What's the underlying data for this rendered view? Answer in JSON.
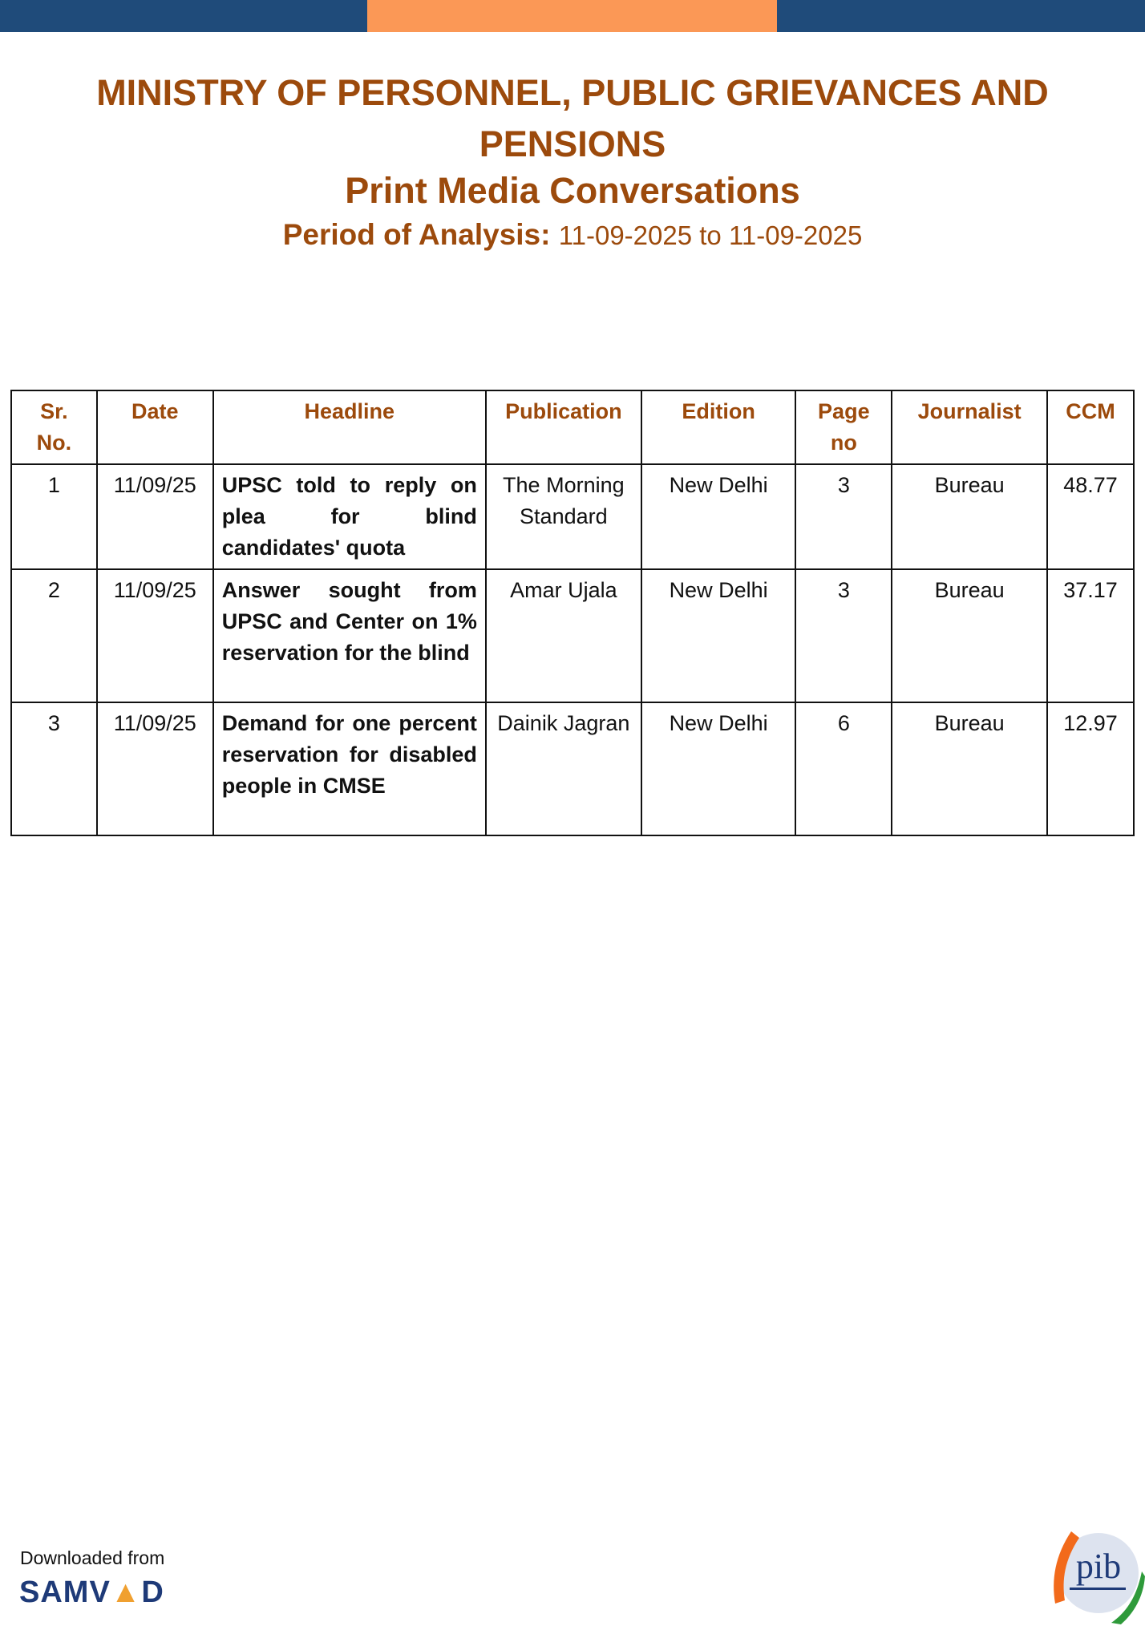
{
  "header": {
    "ministry": "MINISTRY OF PERSONNEL, PUBLIC GRIEVANCES AND PENSIONS",
    "title": "Print Media Conversations",
    "period_label": "Period of Analysis:",
    "period_value": "11-09-2025 to 11-09-2025"
  },
  "colors": {
    "brand_blue": "#1f4b7a",
    "brand_orange": "#fb9856",
    "heading": "#9c4a0c"
  },
  "table": {
    "columns": [
      "Sr. No.",
      "Date",
      "Headline",
      "Publication",
      "Edition",
      "Page no",
      "Journalist",
      "CCM"
    ],
    "rows": [
      {
        "sr": "1",
        "date": "11/09/25",
        "headline": "UPSC told to reply on plea for blind candidates' quota",
        "publication": "The Morning Standard",
        "edition": "New Delhi",
        "page": "3",
        "journalist": "Bureau",
        "ccm": "48.77"
      },
      {
        "sr": "2",
        "date": "11/09/25",
        "headline": "Answer sought from UPSC and Center on 1% reservation for the blind",
        "publication": "Amar Ujala",
        "edition": "New Delhi",
        "page": "3",
        "journalist": "Bureau",
        "ccm": "37.17"
      },
      {
        "sr": "3",
        "date": "11/09/25",
        "headline": "Demand for one percent reservation for disabled people in CMSE",
        "publication": "Dainik Jagran",
        "edition": "New Delhi",
        "page": "6",
        "journalist": "Bureau",
        "ccm": "12.97"
      }
    ]
  },
  "footer": {
    "downloaded_from": "Downloaded from",
    "samvad_logo": "SAMVAD",
    "pib_logo": "pib"
  }
}
